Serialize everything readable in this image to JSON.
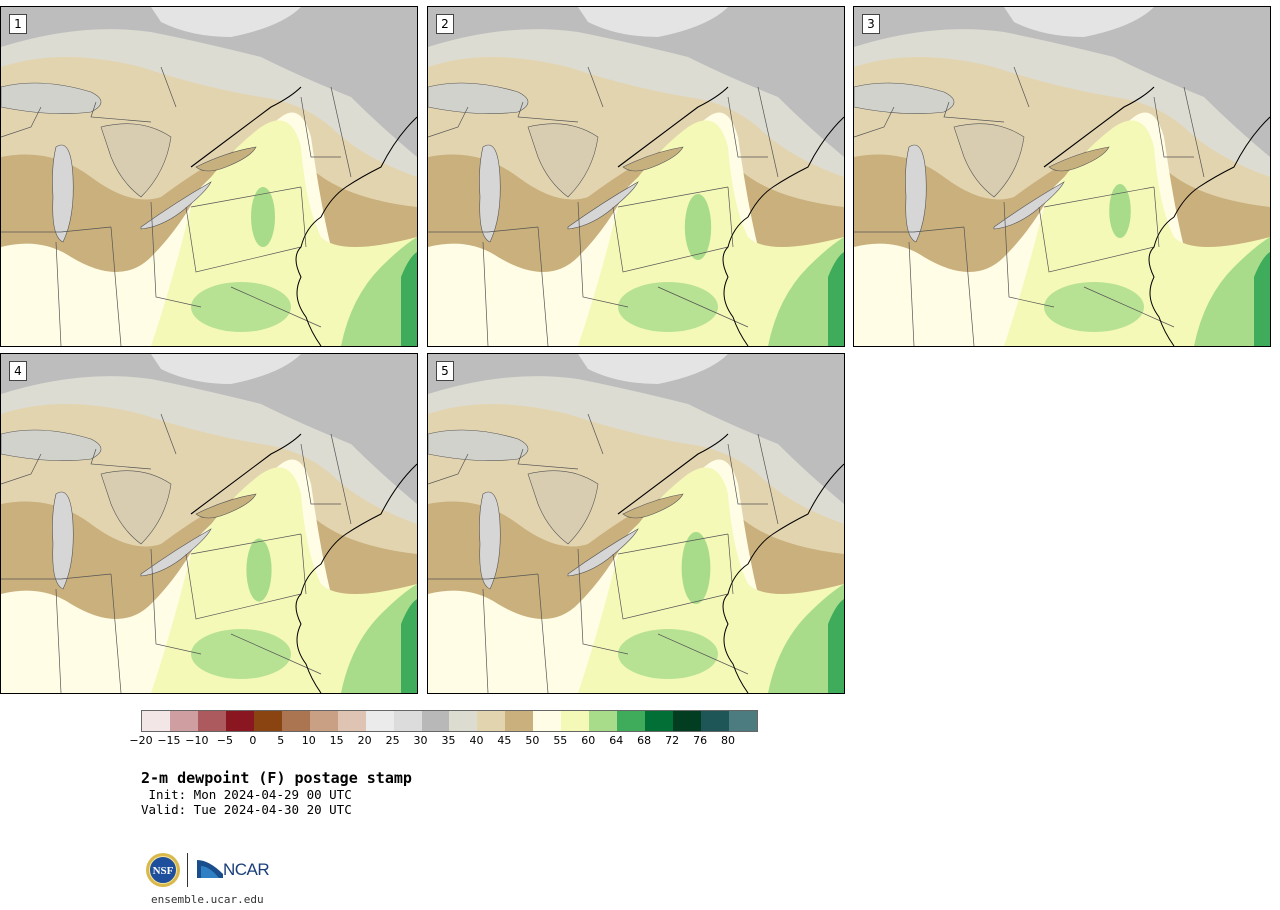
{
  "panels": [
    {
      "label": "1"
    },
    {
      "label": "2"
    },
    {
      "label": "3"
    },
    {
      "label": "4"
    },
    {
      "label": "5"
    }
  ],
  "colorbar": {
    "colors": [
      "#f3e6e6",
      "#cf9ea0",
      "#ad5a5e",
      "#8a1622",
      "#8a4412",
      "#ab7551",
      "#c9a084",
      "#dfc3b3",
      "#ebebeb",
      "#dcdcdc",
      "#b8b8b8",
      "#dcdcd0",
      "#e3d4b0",
      "#c9b07c",
      "#fffde6",
      "#f4f9b8",
      "#a9dc8a",
      "#3fac5c",
      "#027036",
      "#023d21",
      "#1e5557",
      "#4d7c80"
    ],
    "ticks": [
      "−20",
      "−15",
      "−10",
      "−5",
      "0",
      "5",
      "10",
      "15",
      "20",
      "25",
      "30",
      "35",
      "40",
      "45",
      "50",
      "55",
      "60",
      "64",
      "68",
      "72",
      "76",
      "80"
    ]
  },
  "title": "2-m dewpoint (F) postage stamp",
  "init": " Init: Mon 2024-04-29 00 UTC",
  "valid": "Valid: Tue 2024-04-30 20 UTC",
  "logo": {
    "seal_text": "NSF",
    "org_text": "NCAR"
  },
  "site": "ensemble.ucar.edu",
  "map_colors": {
    "cold_gray": "#bdbdbd",
    "light_gray": "#dcdcd3",
    "pale_tan": "#e3d4b0",
    "tan": "#c9b07c",
    "cream": "#fffde6",
    "pale_yellow": "#f4f9b8",
    "light_green": "#a9dc8a",
    "green": "#3fac5c",
    "lake": "#d6d6d6",
    "boundary": "#555555",
    "coast": "#000000"
  }
}
